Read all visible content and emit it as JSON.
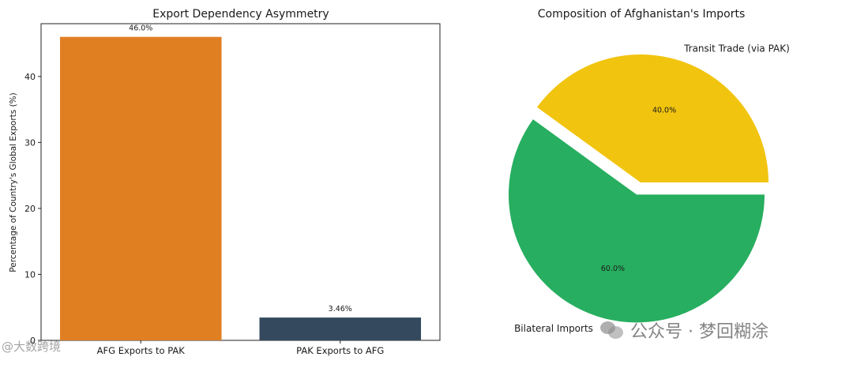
{
  "chart_data": [
    {
      "type": "bar",
      "title": "Export Dependency Asymmetry",
      "ylabel": "Percentage of Country's Global Exports (%)",
      "categories": [
        "AFG Exports to PAK",
        "PAK Exports to AFG"
      ],
      "values": [
        46.0,
        3.46
      ],
      "data_labels": [
        "46.0%",
        "3.46%"
      ],
      "colors": [
        "#e07e22",
        "#34495e"
      ],
      "yticks": [
        0,
        10,
        20,
        30,
        40
      ],
      "ylim": [
        0,
        48
      ],
      "grid": false
    },
    {
      "type": "pie",
      "title": "Composition of Afghanistan's Imports",
      "labels": [
        "Transit Trade (via PAK)",
        "Bilateral Imports"
      ],
      "values": [
        40.0,
        60.0
      ],
      "data_labels": [
        "40.0%",
        "60.0%"
      ],
      "colors": [
        "#f1c40f",
        "#27ae60"
      ],
      "exploded": "Bilateral Imports"
    }
  ],
  "watermarks": {
    "left": "@大数跨境",
    "right": "公众号 · 梦回糊涂",
    "icon": "wechat-icon"
  }
}
